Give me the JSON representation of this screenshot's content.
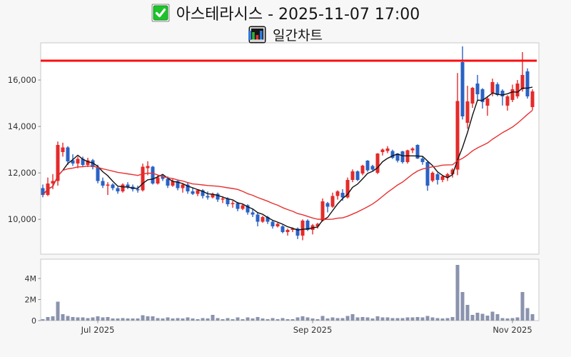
{
  "header": {
    "title": "아스테라시스 - 2025-11-07 17:00",
    "subtitle": "일간차트",
    "icons": [
      "check-icon",
      "bar-chart-icon"
    ],
    "check_icon_color": "#1ec32b",
    "bar_icon_bars": [
      "#35b13a",
      "#e03030",
      "#2a7de0"
    ]
  },
  "chart_data": {
    "type": "candlestick_with_volume",
    "title": "아스테라시스 - 2025-11-07 17:00",
    "subtitle": "일간차트",
    "legend_position": "none",
    "grid": false,
    "price_axis": {
      "min": 8500,
      "max": 17600,
      "ticks": [
        {
          "value": 10000,
          "label": "10,000"
        },
        {
          "value": 12000,
          "label": "12,000"
        },
        {
          "value": 14000,
          "label": "14,000"
        },
        {
          "value": 16000,
          "label": "16,000"
        }
      ]
    },
    "volume_axis": {
      "min": 0,
      "max": 5830000,
      "ticks": [
        {
          "value": 0,
          "label": "0"
        },
        {
          "value": 2000000,
          "label": "2M"
        },
        {
          "value": 4000000,
          "label": "4M"
        }
      ]
    },
    "x_axis": {
      "ticks": [
        {
          "index": 11,
          "label": "Jul 2025"
        },
        {
          "index": 54,
          "label": "Sep 2025"
        },
        {
          "index": 94,
          "label": "Nov 2025"
        }
      ]
    },
    "hline": {
      "value": 16830,
      "color": "#fb0d10",
      "width": 3
    },
    "moving_averages": [
      {
        "name": "ma-short",
        "window": 5,
        "color": "#111111",
        "width": 1.4
      },
      {
        "name": "ma-long",
        "window": 20,
        "color": "#e83030",
        "width": 1.4
      }
    ],
    "colors": {
      "up": "#e42a2a",
      "down": "#2a62c5",
      "volume_bar": "#8b93ad",
      "panel_bg": "#ffffff",
      "panel_border": "#c9c9c9",
      "tick_text": "#333333"
    },
    "candles_format": [
      "open",
      "high",
      "low",
      "close",
      "volume"
    ],
    "candles": [
      [
        11350,
        11500,
        10950,
        11050,
        150000
      ],
      [
        11050,
        11800,
        11000,
        11550,
        350000
      ],
      [
        11550,
        11950,
        11300,
        11650,
        400000
      ],
      [
        11650,
        13350,
        11450,
        13200,
        1800000
      ],
      [
        12900,
        13300,
        12700,
        13100,
        600000
      ],
      [
        13100,
        13150,
        12350,
        12500,
        450000
      ],
      [
        12550,
        12800,
        12300,
        12400,
        350000
      ],
      [
        12400,
        12700,
        12200,
        12600,
        300000
      ],
      [
        12600,
        12700,
        12250,
        12350,
        300000
      ],
      [
        12350,
        12650,
        12250,
        12550,
        250000
      ],
      [
        12550,
        12600,
        12150,
        12250,
        300000
      ],
      [
        12250,
        12350,
        11550,
        11650,
        400000
      ],
      [
        11650,
        11800,
        11350,
        11450,
        300000
      ],
      [
        11450,
        11600,
        11050,
        11500,
        350000
      ],
      [
        11500,
        11550,
        11250,
        11350,
        200000
      ],
      [
        11350,
        11400,
        11100,
        11200,
        200000
      ],
      [
        11200,
        11550,
        11150,
        11500,
        250000
      ],
      [
        11500,
        11600,
        11300,
        11400,
        200000
      ],
      [
        11400,
        11500,
        11200,
        11300,
        200000
      ],
      [
        11300,
        11450,
        11150,
        11250,
        200000
      ],
      [
        11250,
        12400,
        11200,
        12270,
        500000
      ],
      [
        12200,
        12500,
        11900,
        12300,
        400000
      ],
      [
        12270,
        12300,
        11500,
        11550,
        400000
      ],
      [
        11550,
        11900,
        11500,
        11800,
        250000
      ],
      [
        11850,
        11950,
        11650,
        11750,
        200000
      ],
      [
        11750,
        11850,
        11350,
        11450,
        300000
      ],
      [
        11450,
        11750,
        11400,
        11650,
        200000
      ],
      [
        11650,
        11700,
        11250,
        11350,
        250000
      ],
      [
        11350,
        11550,
        11150,
        11500,
        200000
      ],
      [
        11500,
        11600,
        11100,
        11200,
        300000
      ],
      [
        11200,
        11350,
        11050,
        11100,
        200000
      ],
      [
        11100,
        11300,
        11000,
        11250,
        150000
      ],
      [
        11250,
        11300,
        10900,
        11000,
        250000
      ],
      [
        11000,
        11200,
        10850,
        10950,
        200000
      ],
      [
        10950,
        11150,
        10900,
        11100,
        550000
      ],
      [
        11100,
        11150,
        10750,
        10850,
        250000
      ],
      [
        10850,
        11000,
        10700,
        10900,
        150000
      ],
      [
        10900,
        10950,
        10550,
        10650,
        250000
      ],
      [
        10650,
        10800,
        10500,
        10700,
        150000
      ],
      [
        10700,
        10750,
        10350,
        10450,
        300000
      ],
      [
        10450,
        10650,
        10400,
        10600,
        150000
      ],
      [
        10600,
        10650,
        10200,
        10300,
        300000
      ],
      [
        10300,
        10450,
        10100,
        10200,
        200000
      ],
      [
        10200,
        10300,
        9700,
        9900,
        350000
      ],
      [
        9900,
        10150,
        9850,
        10100,
        200000
      ],
      [
        10100,
        10150,
        9800,
        9900,
        150000
      ],
      [
        9900,
        9950,
        9600,
        9700,
        250000
      ],
      [
        9700,
        9850,
        9650,
        9800,
        150000
      ],
      [
        9700,
        9750,
        9400,
        9450,
        250000
      ],
      [
        9450,
        9600,
        9300,
        9550,
        150000
      ],
      [
        9550,
        9650,
        9450,
        9600,
        150000
      ],
      [
        9600,
        9650,
        9150,
        9300,
        300000
      ],
      [
        9300,
        10000,
        9100,
        9950,
        400000
      ],
      [
        9950,
        10000,
        9500,
        9550,
        300000
      ],
      [
        9550,
        9800,
        9350,
        9750,
        200000
      ],
      [
        9700,
        9850,
        9600,
        9800,
        150000
      ],
      [
        9950,
        10900,
        9900,
        10770,
        450000
      ],
      [
        10700,
        10750,
        10300,
        10550,
        200000
      ],
      [
        10550,
        11150,
        10500,
        11000,
        300000
      ],
      [
        11000,
        11250,
        10850,
        11200,
        250000
      ],
      [
        11150,
        11300,
        10800,
        10950,
        250000
      ],
      [
        10950,
        11800,
        10900,
        11690,
        450000
      ],
      [
        11690,
        12150,
        11600,
        12060,
        600000
      ],
      [
        12060,
        12100,
        11650,
        11700,
        300000
      ],
      [
        11970,
        12350,
        11900,
        12310,
        350000
      ],
      [
        12520,
        12550,
        12050,
        12120,
        300000
      ],
      [
        12300,
        12350,
        12100,
        12150,
        200000
      ],
      [
        12000,
        12850,
        11950,
        12830,
        400000
      ],
      [
        12890,
        13050,
        12750,
        13000,
        300000
      ],
      [
        12950,
        13150,
        12850,
        13050,
        300000
      ],
      [
        12950,
        13000,
        12600,
        12650,
        250000
      ],
      [
        12830,
        12850,
        12450,
        12520,
        250000
      ],
      [
        12920,
        12950,
        12400,
        12460,
        250000
      ],
      [
        12460,
        13000,
        12400,
        12980,
        300000
      ],
      [
        12980,
        13100,
        12850,
        13050,
        300000
      ],
      [
        13200,
        13230,
        12600,
        12620,
        350000
      ],
      [
        12620,
        12700,
        12350,
        12460,
        300000
      ],
      [
        12460,
        12500,
        11230,
        11450,
        450000
      ],
      [
        11660,
        12060,
        11600,
        12000,
        300000
      ],
      [
        11950,
        12000,
        11500,
        11700,
        250000
      ],
      [
        11700,
        11900,
        11600,
        11850,
        200000
      ],
      [
        11800,
        12000,
        11650,
        11950,
        250000
      ],
      [
        11950,
        12200,
        11800,
        12150,
        350000
      ],
      [
        12150,
        16300,
        11900,
        15100,
        5300000
      ],
      [
        16770,
        17450,
        14300,
        14430,
        2700000
      ],
      [
        14150,
        15750,
        13900,
        15080,
        1500000
      ],
      [
        14980,
        15700,
        14800,
        15660,
        550000
      ],
      [
        15850,
        16220,
        15140,
        15390,
        750000
      ],
      [
        15600,
        15650,
        14770,
        15050,
        650000
      ],
      [
        14890,
        15300,
        14460,
        15200,
        470000
      ],
      [
        15450,
        16060,
        15300,
        15910,
        860000
      ],
      [
        15820,
        15900,
        15300,
        15350,
        600000
      ],
      [
        15540,
        15600,
        14900,
        15290,
        250000
      ],
      [
        14890,
        15350,
        14680,
        15290,
        200000
      ],
      [
        15140,
        15800,
        15050,
        15600,
        250000
      ],
      [
        15290,
        16000,
        15200,
        15850,
        300000
      ],
      [
        15600,
        17200,
        15500,
        16220,
        2700000
      ],
      [
        16370,
        16500,
        15200,
        15290,
        1200000
      ],
      [
        14830,
        15600,
        14700,
        15510,
        600000
      ]
    ]
  }
}
